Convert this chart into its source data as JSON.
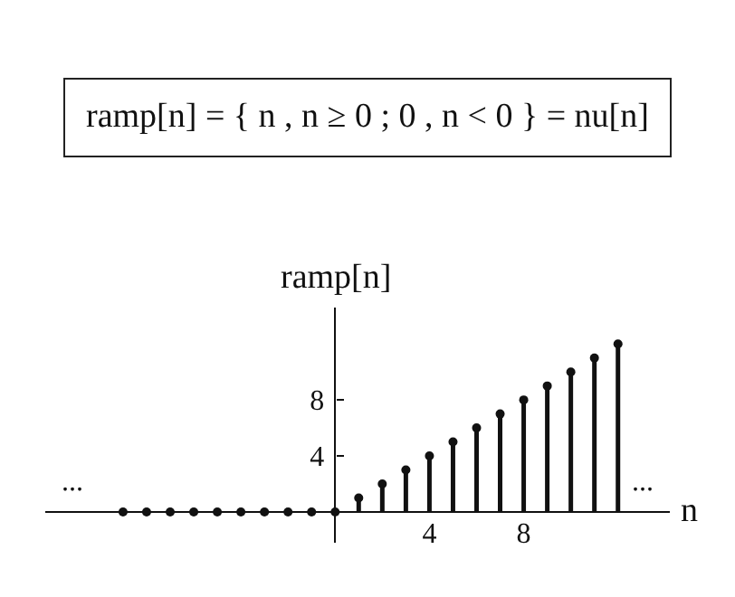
{
  "chart_data": {
    "type": "lollipop",
    "title": "ramp[n] = { n , n ≥ 0 ; 0 , n < 0 } = nu[n]",
    "ylabel": "ramp[n]",
    "xlabel": "n",
    "x": [
      -9,
      -8,
      -7,
      -6,
      -5,
      -4,
      -3,
      -2,
      -1,
      0,
      1,
      2,
      3,
      4,
      5,
      6,
      7,
      8,
      9,
      10,
      11,
      12
    ],
    "values": [
      0,
      0,
      0,
      0,
      0,
      0,
      0,
      0,
      0,
      0,
      1,
      2,
      3,
      4,
      5,
      6,
      7,
      8,
      9,
      10,
      11,
      12
    ],
    "color": "#111111",
    "marker": "circle",
    "xlim": [
      -12.3,
      14.2
    ],
    "ylim": [
      -2.2,
      14.6
    ],
    "xticks": [
      4,
      8
    ],
    "yticks": [
      4,
      8
    ],
    "annotations": [
      "...",
      "..."
    ]
  }
}
